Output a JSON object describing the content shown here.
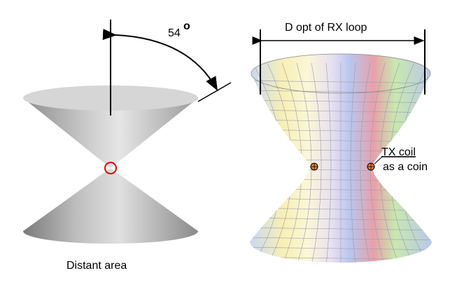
{
  "left": {
    "angle": {
      "value": "54",
      "degree_mark": "o"
    },
    "caption": "Distant area"
  },
  "right": {
    "dimension_label": "D opt  of RX loop",
    "coil_label": {
      "line1": "TX coil",
      "line2": "as a coin"
    }
  }
}
